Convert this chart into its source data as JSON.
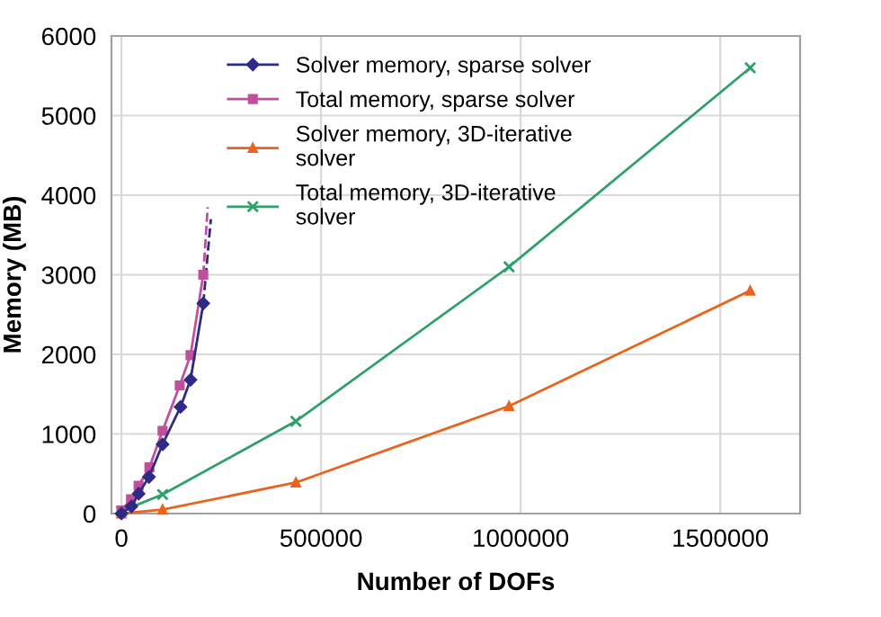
{
  "chart_data": {
    "type": "line",
    "xlabel": "Number of DOFs",
    "ylabel": "Memory (MB)",
    "xlim": [
      -25000,
      1700000
    ],
    "xticks": [
      0,
      500000,
      1000000,
      1500000
    ],
    "ylim": [
      0,
      6000
    ],
    "yticks": [
      0,
      1000,
      2000,
      3000,
      4000,
      5000,
      6000
    ],
    "grid": true,
    "legend": "top left",
    "series": [
      {
        "name": "Solver memory, sparse solver",
        "color": "#2e2a86",
        "marker": "diamond",
        "x": [
          0,
          25000,
          43000,
          69000,
          103000,
          148000,
          173000,
          205000
        ],
        "values": [
          0,
          90,
          250,
          460,
          870,
          1340,
          1680,
          2640
        ]
      },
      {
        "name": "Total memory, sparse solver",
        "color": "#c0509c",
        "marker": "square",
        "x": [
          0,
          24000,
          43000,
          70000,
          103000,
          146000,
          173000,
          205000
        ],
        "values": [
          40,
          180,
          350,
          580,
          1040,
          1610,
          1990,
          3000
        ]
      },
      {
        "name": "Solver memory, 3D-iterative solver",
        "color": "#e8641e",
        "marker": "triangle",
        "x": [
          0,
          103000,
          437000,
          971000,
          1575000
        ],
        "values": [
          0,
          50,
          390,
          1350,
          2800
        ]
      },
      {
        "name": "Total memory, 3D-iterative solver",
        "color": "#2ea06a",
        "marker": "cross",
        "x": [
          0,
          103000,
          437000,
          971000,
          1575000
        ],
        "values": [
          30,
          240,
          1160,
          3100,
          5600
        ]
      },
      {
        "color": "#2e2a86",
        "line_style": "dashed",
        "marker": "none",
        "x": [
          205000,
          224000
        ],
        "values": [
          2640,
          3700
        ]
      },
      {
        "color": "#c0509c",
        "line_style": "dashed",
        "marker": "none",
        "x": [
          205000,
          216000
        ],
        "values": [
          3000,
          3850
        ]
      }
    ]
  }
}
